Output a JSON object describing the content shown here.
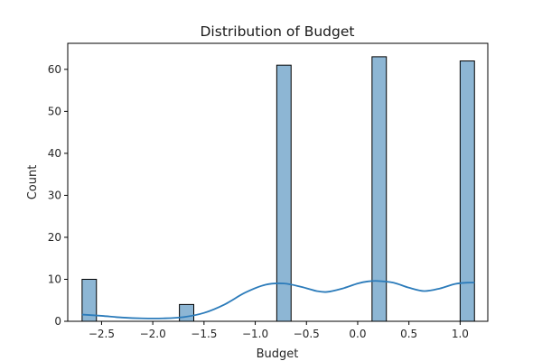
{
  "chart_data": {
    "type": "bar",
    "title": "Distribution of Budget",
    "xlabel": "Budget",
    "ylabel": "Count",
    "xlim": [
      -2.83,
      1.27
    ],
    "ylim": [
      0,
      66.2
    ],
    "x_ticks": [
      -2.5,
      -2.0,
      -1.5,
      -1.0,
      -0.5,
      0.0,
      0.5,
      1.0
    ],
    "x_tick_labels": [
      "−2.5",
      "−2.0",
      "−1.5",
      "−1.0",
      "−0.5",
      "0.0",
      "0.5",
      "1.0"
    ],
    "y_ticks": [
      0,
      10,
      20,
      30,
      40,
      50,
      60
    ],
    "y_tick_labels": [
      "0",
      "10",
      "20",
      "30",
      "40",
      "50",
      "60"
    ],
    "grid": false,
    "bar_color": "#8db6d4",
    "bar_edge_color": "#000000",
    "kde_color": "#2b7bba",
    "bars": [
      {
        "x_start": -2.69,
        "x_end": -2.55,
        "count": 10
      },
      {
        "x_start": -1.74,
        "x_end": -1.6,
        "count": 4
      },
      {
        "x_start": -0.79,
        "x_end": -0.65,
        "count": 61
      },
      {
        "x_start": 0.14,
        "x_end": 0.28,
        "count": 63
      },
      {
        "x_start": 1.0,
        "x_end": 1.14,
        "count": 62
      }
    ],
    "kde": {
      "x": [
        -2.69,
        -2.5,
        -2.3,
        -2.1,
        -1.9,
        -1.7,
        -1.5,
        -1.3,
        -1.1,
        -0.9,
        -0.72,
        -0.55,
        -0.4,
        -0.3,
        -0.15,
        0.0,
        0.1,
        0.2,
        0.35,
        0.5,
        0.65,
        0.8,
        0.95,
        1.07,
        1.14
      ],
      "y": [
        1.6,
        1.3,
        0.9,
        0.7,
        0.7,
        1.0,
        2.0,
        4.0,
        6.8,
        8.7,
        9.0,
        8.2,
        7.2,
        7.0,
        7.8,
        9.0,
        9.5,
        9.6,
        9.2,
        8.0,
        7.2,
        7.8,
        8.9,
        9.2,
        9.2
      ]
    }
  }
}
